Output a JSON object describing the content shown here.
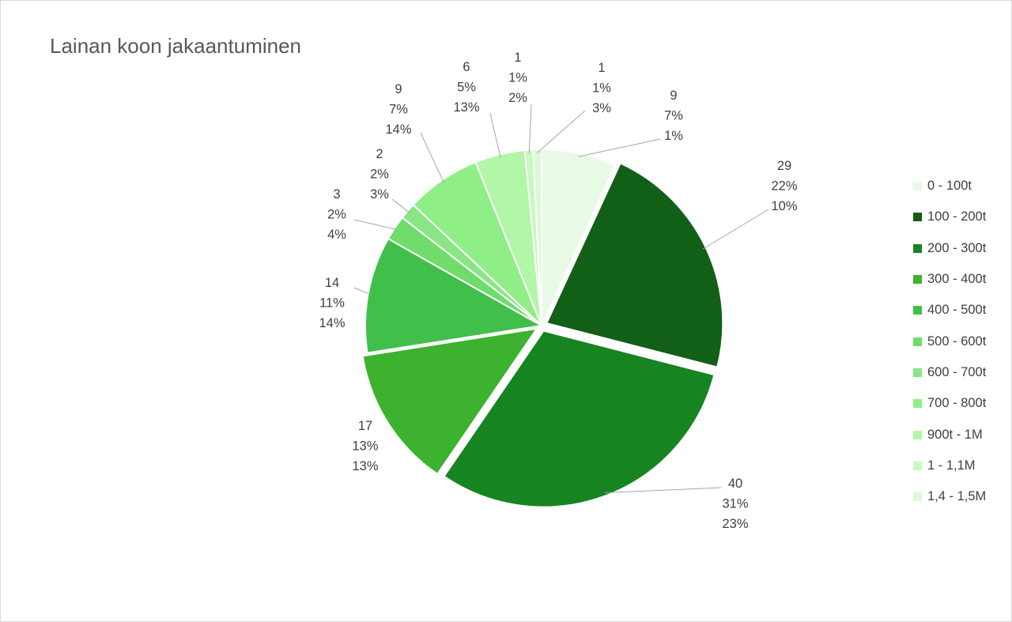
{
  "title": "Lainan koon jakaantuminen",
  "chart_data": {
    "type": "pie",
    "title": "Lainan koon jakaantuminen",
    "categories": [
      "0 - 100t",
      "100 - 200t",
      "200 - 300t",
      "300 - 400t",
      "400 - 500t",
      "500 - 600t",
      "600 - 700t",
      "700 - 800t",
      "900t - 1M",
      "1 - 1,1M",
      "1,4 - 1,5M"
    ],
    "values": [
      9,
      29,
      40,
      17,
      14,
      3,
      2,
      9,
      6,
      1,
      1
    ],
    "percent_of_count": [
      "7%",
      "22%",
      "31%",
      "13%",
      "11%",
      "2%",
      "2%",
      "7%",
      "5%",
      "1%",
      "1%"
    ],
    "percent_second": [
      "1%",
      "10%",
      "23%",
      "13%",
      "14%",
      "4%",
      "3%",
      "14%",
      "13%",
      "2%",
      "3%"
    ],
    "colors": [
      "#e8fae6",
      "#125f18",
      "#168420",
      "#3cb22f",
      "#40c04a",
      "#6fdc6c",
      "#8ae587",
      "#90ee86",
      "#b2f6a7",
      "#c8f8c0",
      "#daf9d4"
    ],
    "exploded": [
      false,
      true,
      true,
      true,
      false,
      false,
      false,
      false,
      false,
      false,
      false
    ],
    "legend_position": "right"
  }
}
